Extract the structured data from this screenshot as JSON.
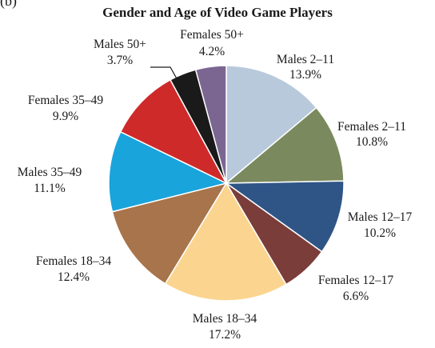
{
  "corner_label": "(b)",
  "chart_data": {
    "type": "pie",
    "title": "Gender and Age of Video Game Players",
    "start_angle_deg": 0,
    "direction": "clockwise",
    "slices": [
      {
        "label": "Males 2–11",
        "value_text": "13.9%",
        "value": 13.9,
        "color": "#b9c9dc"
      },
      {
        "label": "Females 2–11",
        "value_text": "10.8%",
        "value": 10.8,
        "color": "#7b8a5e"
      },
      {
        "label": "Males 12–17",
        "value_text": "10.2%",
        "value": 10.2,
        "color": "#2e5586"
      },
      {
        "label": "Females 12–17",
        "value_text": "6.6%",
        "value": 6.6,
        "color": "#7a3d3a"
      },
      {
        "label": "Males 18–34",
        "value_text": "17.2%",
        "value": 17.2,
        "color": "#fbd58f"
      },
      {
        "label": "Females 18–34",
        "value_text": "12.4%",
        "value": 12.4,
        "color": "#a8744b"
      },
      {
        "label": "Males 35–49",
        "value_text": "11.1%",
        "value": 11.1,
        "color": "#19a4dc"
      },
      {
        "label": "Females 35–49",
        "value_text": "9.9%",
        "value": 9.9,
        "color": "#cf2a2a"
      },
      {
        "label": "Males 50+",
        "value_text": "3.7%",
        "value": 3.7,
        "color": "#1a1a1a"
      },
      {
        "label": "Females 50+",
        "value_text": "4.2%",
        "value": 4.2,
        "color": "#7b6692"
      }
    ]
  }
}
